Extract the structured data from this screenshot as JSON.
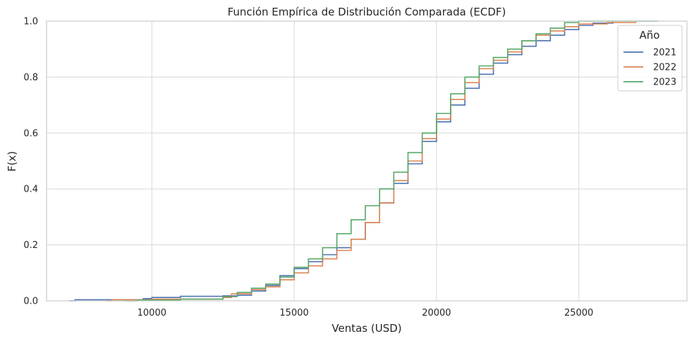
{
  "chart_data": {
    "type": "line",
    "title": "Función Empírica de Distribución Comparada (ECDF)",
    "xlabel": "Ventas (USD)",
    "ylabel": "F(x)",
    "xlim": [
      6300,
      28800
    ],
    "ylim": [
      0,
      1
    ],
    "x_ticks": [
      10000,
      15000,
      20000,
      25000
    ],
    "y_ticks": [
      0.0,
      0.2,
      0.4,
      0.6,
      0.8,
      1.0
    ],
    "x_tick_labels": [
      "10000",
      "15000",
      "20000",
      "25000"
    ],
    "y_tick_labels": [
      "0.0",
      "0.2",
      "0.4",
      "0.6",
      "0.8",
      "1.0"
    ],
    "grid": true,
    "legend": {
      "title": "Año",
      "position": "top-right"
    },
    "series": [
      {
        "name": "2021",
        "color": "#4c72b0",
        "points": [
          [
            7100,
            0.0
          ],
          [
            7300,
            0.004
          ],
          [
            9700,
            0.008
          ],
          [
            10000,
            0.012
          ],
          [
            11000,
            0.016
          ],
          [
            12500,
            0.018
          ],
          [
            13000,
            0.02
          ],
          [
            13500,
            0.035
          ],
          [
            14000,
            0.055
          ],
          [
            14500,
            0.09
          ],
          [
            15000,
            0.115
          ],
          [
            15500,
            0.14
          ],
          [
            16000,
            0.165
          ],
          [
            16500,
            0.19
          ],
          [
            17000,
            0.22
          ],
          [
            17500,
            0.28
          ],
          [
            18000,
            0.35
          ],
          [
            18500,
            0.42
          ],
          [
            19000,
            0.49
          ],
          [
            19500,
            0.57
          ],
          [
            20000,
            0.64
          ],
          [
            20500,
            0.7
          ],
          [
            21000,
            0.76
          ],
          [
            21500,
            0.81
          ],
          [
            22000,
            0.85
          ],
          [
            22500,
            0.88
          ],
          [
            23000,
            0.91
          ],
          [
            23500,
            0.93
          ],
          [
            24000,
            0.95
          ],
          [
            24500,
            0.97
          ],
          [
            25000,
            0.985
          ],
          [
            25500,
            0.993
          ],
          [
            26200,
            1.0
          ]
        ]
      },
      {
        "name": "2022",
        "color": "#dd8452",
        "points": [
          [
            8400,
            0.0
          ],
          [
            8600,
            0.004
          ],
          [
            10000,
            0.006
          ],
          [
            12500,
            0.012
          ],
          [
            12800,
            0.025
          ],
          [
            13500,
            0.04
          ],
          [
            14000,
            0.05
          ],
          [
            14500,
            0.075
          ],
          [
            15000,
            0.1
          ],
          [
            15500,
            0.125
          ],
          [
            16000,
            0.15
          ],
          [
            16500,
            0.18
          ],
          [
            17000,
            0.22
          ],
          [
            17500,
            0.28
          ],
          [
            18000,
            0.35
          ],
          [
            18500,
            0.43
          ],
          [
            19000,
            0.5
          ],
          [
            19500,
            0.58
          ],
          [
            20000,
            0.65
          ],
          [
            20500,
            0.72
          ],
          [
            21000,
            0.78
          ],
          [
            21500,
            0.83
          ],
          [
            22000,
            0.86
          ],
          [
            22500,
            0.89
          ],
          [
            23000,
            0.93
          ],
          [
            23500,
            0.95
          ],
          [
            24000,
            0.965
          ],
          [
            24500,
            0.98
          ],
          [
            25000,
            0.99
          ],
          [
            26000,
            0.995
          ],
          [
            27000,
            1.0
          ]
        ]
      },
      {
        "name": "2023",
        "color": "#55a868",
        "points": [
          [
            9000,
            0.0
          ],
          [
            9500,
            0.003
          ],
          [
            11000,
            0.006
          ],
          [
            12500,
            0.015
          ],
          [
            13000,
            0.03
          ],
          [
            13500,
            0.045
          ],
          [
            14000,
            0.06
          ],
          [
            14500,
            0.085
          ],
          [
            15000,
            0.12
          ],
          [
            15500,
            0.15
          ],
          [
            16000,
            0.19
          ],
          [
            16500,
            0.24
          ],
          [
            17000,
            0.29
          ],
          [
            17500,
            0.34
          ],
          [
            18000,
            0.4
          ],
          [
            18500,
            0.46
          ],
          [
            19000,
            0.53
          ],
          [
            19500,
            0.6
          ],
          [
            20000,
            0.67
          ],
          [
            20500,
            0.74
          ],
          [
            21000,
            0.8
          ],
          [
            21500,
            0.84
          ],
          [
            22000,
            0.87
          ],
          [
            22500,
            0.9
          ],
          [
            23000,
            0.93
          ],
          [
            23500,
            0.955
          ],
          [
            24000,
            0.975
          ],
          [
            24500,
            0.995
          ],
          [
            25000,
            1.0
          ],
          [
            27800,
            1.0
          ]
        ]
      }
    ]
  }
}
